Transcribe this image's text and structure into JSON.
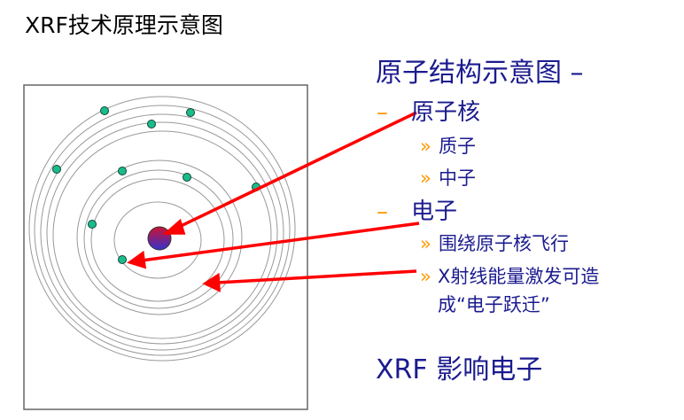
{
  "title": "XRF技术原理示意图",
  "heading": "原子结构示意图 –",
  "bullets": [
    {
      "marker": "–",
      "label": "原子核",
      "sub": [
        {
          "marker": "»",
          "label": "质子"
        },
        {
          "marker": "»",
          "label": "中子"
        }
      ]
    },
    {
      "marker": "–",
      "label": "电子",
      "sub": [
        {
          "marker": "»",
          "label": "围绕原子核飞行"
        },
        {
          "marker": "»",
          "label": "X射线能量激发可造",
          "label2": "成“电子跃迁”"
        }
      ]
    }
  ],
  "footer": "XRF 影响电子",
  "colors": {
    "text": "#1b1b8f",
    "bullet": "#ff9900",
    "arrow": "#ff0000",
    "electron": "#1abc8c",
    "orbit": "#999999"
  }
}
